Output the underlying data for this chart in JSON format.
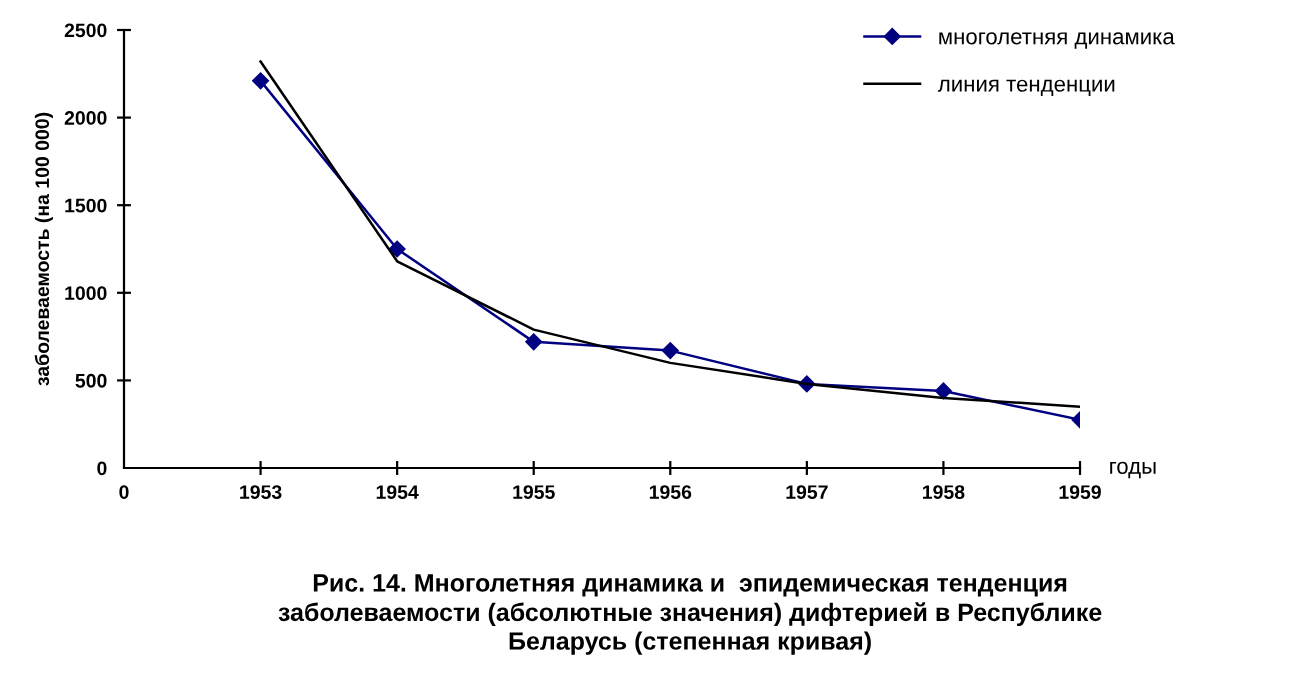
{
  "chart_data": {
    "type": "line",
    "ylabel": "заболеваемость (на 100 000)",
    "xlabel": "годы",
    "categories": [
      "0",
      "1953",
      "1954",
      "1955",
      "1956",
      "1957",
      "1958",
      "1959"
    ],
    "series": [
      {
        "name": "многолетняя динамика",
        "color": "#000080",
        "marker": "diamond",
        "values": [
          null,
          2210,
          1250,
          720,
          670,
          480,
          440,
          275
        ]
      },
      {
        "name": "линия тенденции",
        "color": "#000000",
        "marker": "none",
        "values": [
          null,
          2320,
          1180,
          790,
          600,
          480,
          400,
          350
        ]
      }
    ],
    "ylim": [
      0,
      2500
    ],
    "yticks": [
      0,
      500,
      1000,
      1500,
      2000,
      2500
    ],
    "grid": false,
    "legend": "top right",
    "line_style": "solid",
    "annotations": [
      "Рис. 14. Многолетняя динамика и  эпидемическая тенденция\nзаболеваемости (абсолютные значения) дифтерией в Республике\nБеларусь (степенная кривая)"
    ]
  }
}
